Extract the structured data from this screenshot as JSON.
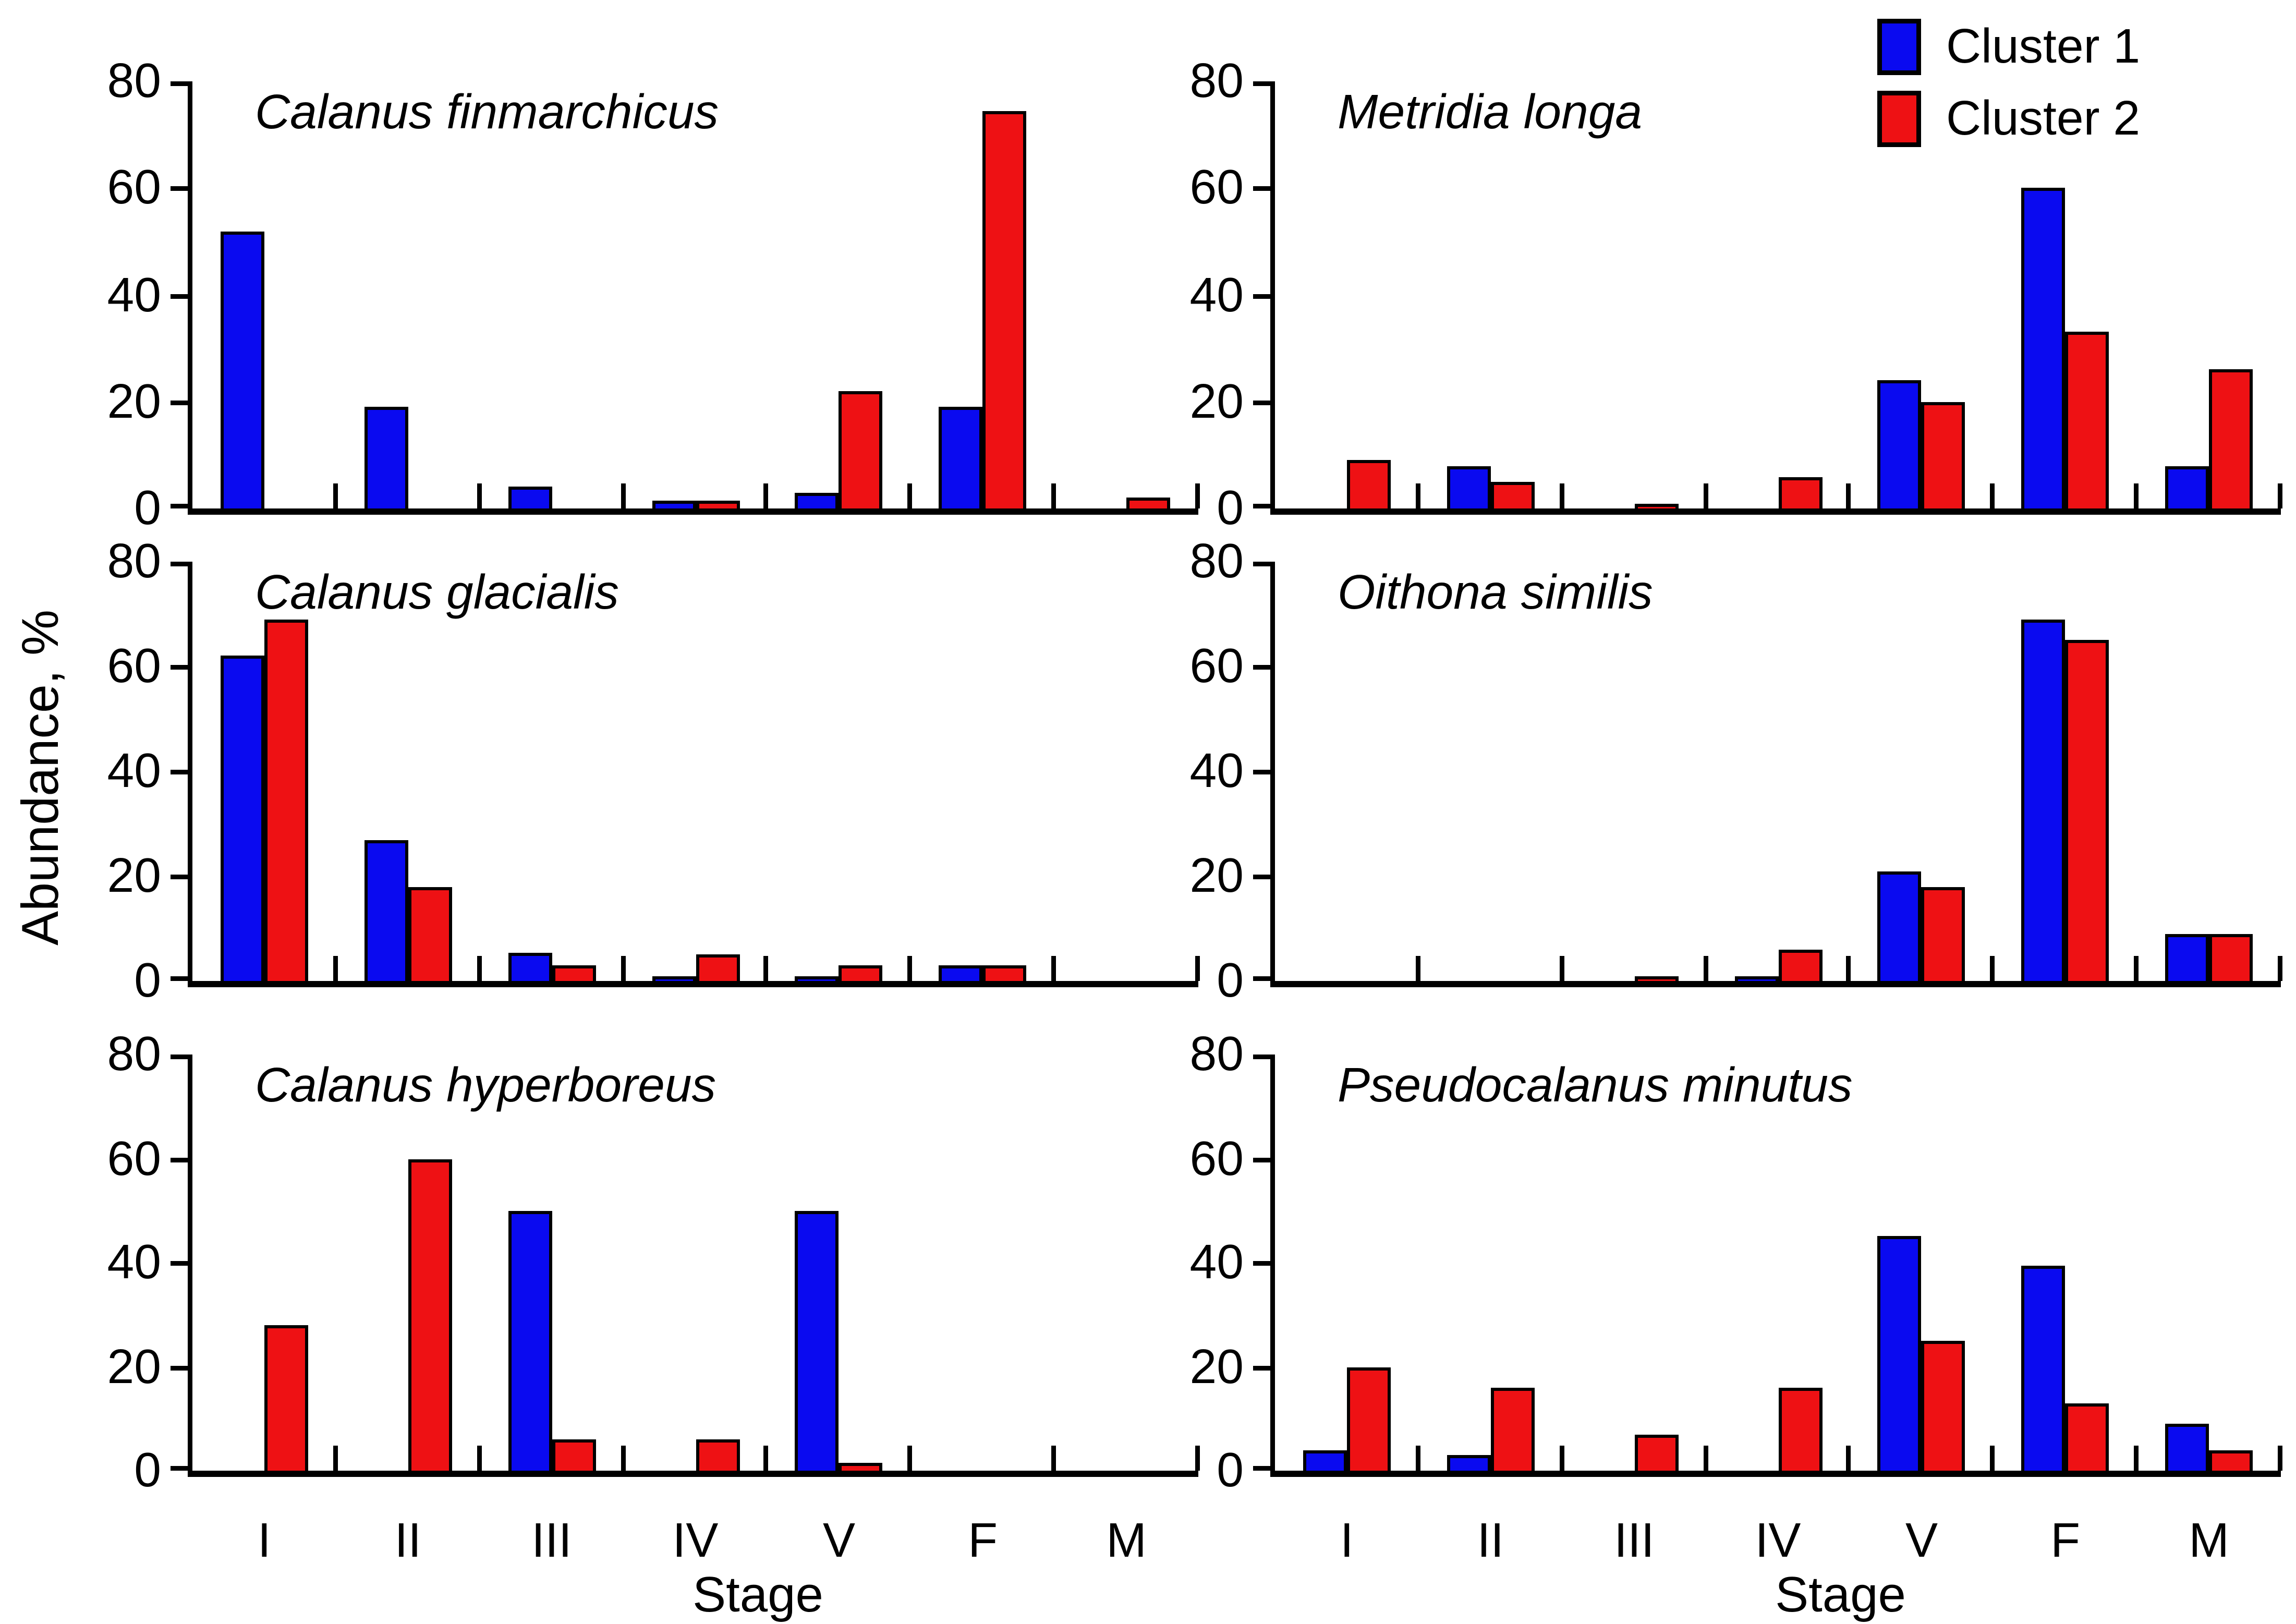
{
  "figure": {
    "ylabel": "Abundance, %",
    "xlabel": "Stage",
    "stages": [
      "I",
      "II",
      "III",
      "IV",
      "V",
      "F",
      "M"
    ],
    "yticks": [
      0,
      20,
      40,
      60,
      80
    ],
    "ylim": [
      0,
      80
    ],
    "legend": [
      {
        "label": "Cluster 1",
        "color": "#0A0AF0"
      },
      {
        "label": "Cluster 2",
        "color": "#EE1114"
      }
    ],
    "colors": {
      "cluster1": "#0A0AF0",
      "cluster2": "#EE1114",
      "axis": "#000000",
      "background": "#FFFFFF"
    }
  },
  "chart_data": [
    {
      "type": "bar",
      "title": "Calanus finmarchicus",
      "categories": [
        "I",
        "II",
        "III",
        "IV",
        "V",
        "F",
        "M"
      ],
      "series": [
        {
          "name": "Cluster 1",
          "color": "#0A0AF0",
          "values": [
            52,
            19,
            4,
            1.5,
            3,
            19,
            0
          ]
        },
        {
          "name": "Cluster 2",
          "color": "#EE1114",
          "values": [
            0,
            0,
            0,
            1.5,
            22,
            74.5,
            2
          ]
        }
      ],
      "xlabel": "Stage",
      "ylabel": "Abundance, %",
      "ylim": [
        0,
        80
      ],
      "grid": false,
      "legend_position": "top-right-of-figure"
    },
    {
      "type": "bar",
      "title": "Metridia longa",
      "categories": [
        "I",
        "II",
        "III",
        "IV",
        "V",
        "F",
        "M"
      ],
      "series": [
        {
          "name": "Cluster 1",
          "color": "#0A0AF0",
          "values": [
            0,
            8,
            0,
            0,
            24,
            60,
            8
          ]
        },
        {
          "name": "Cluster 2",
          "color": "#EE1114",
          "values": [
            9,
            5,
            1,
            6,
            20,
            33,
            26
          ]
        }
      ],
      "xlabel": "Stage",
      "ylabel": "Abundance, %",
      "ylim": [
        0,
        80
      ],
      "grid": false
    },
    {
      "type": "bar",
      "title": "Calanus glacialis",
      "categories": [
        "I",
        "II",
        "III",
        "IV",
        "V",
        "F",
        "M"
      ],
      "series": [
        {
          "name": "Cluster 1",
          "color": "#0A0AF0",
          "values": [
            62,
            27,
            5.5,
            1,
            1,
            3,
            0
          ]
        },
        {
          "name": "Cluster 2",
          "color": "#EE1114",
          "values": [
            69,
            18,
            3,
            5,
            3,
            3,
            0
          ]
        }
      ],
      "xlabel": "Stage",
      "ylabel": "Abundance, %",
      "ylim": [
        0,
        80
      ],
      "grid": false
    },
    {
      "type": "bar",
      "title": "Oithona similis",
      "categories": [
        "I",
        "II",
        "III",
        "IV",
        "V",
        "F",
        "M"
      ],
      "series": [
        {
          "name": "Cluster 1",
          "color": "#0A0AF0",
          "values": [
            0,
            0,
            0,
            1,
            21,
            69,
            9
          ]
        },
        {
          "name": "Cluster 2",
          "color": "#EE1114",
          "values": [
            0,
            0,
            1,
            6,
            18,
            65,
            9
          ]
        }
      ],
      "xlabel": "Stage",
      "ylabel": "Abundance, %",
      "ylim": [
        0,
        80
      ],
      "grid": false
    },
    {
      "type": "bar",
      "title": "Calanus hyperboreus",
      "categories": [
        "I",
        "II",
        "III",
        "IV",
        "V",
        "F",
        "M"
      ],
      "series": [
        {
          "name": "Cluster 1",
          "color": "#0A0AF0",
          "values": [
            0,
            0,
            50,
            0,
            50,
            0,
            0
          ]
        },
        {
          "name": "Cluster 2",
          "color": "#EE1114",
          "values": [
            28,
            60,
            6,
            6,
            1.5,
            0,
            0
          ]
        }
      ],
      "xlabel": "Stage",
      "ylabel": "Abundance, %",
      "ylim": [
        0,
        80
      ],
      "grid": false
    },
    {
      "type": "bar",
      "title": "Pseudocalanus minutus",
      "categories": [
        "I",
        "II",
        "III",
        "IV",
        "V",
        "F",
        "M"
      ],
      "series": [
        {
          "name": "Cluster 1",
          "color": "#0A0AF0",
          "values": [
            4,
            3,
            0,
            0,
            45,
            39.5,
            9
          ]
        },
        {
          "name": "Cluster 2",
          "color": "#EE1114",
          "values": [
            20,
            16,
            7,
            16,
            25,
            13,
            4
          ]
        }
      ],
      "xlabel": "Stage",
      "ylabel": "Abundance, %",
      "ylim": [
        0,
        80
      ],
      "grid": false
    }
  ]
}
